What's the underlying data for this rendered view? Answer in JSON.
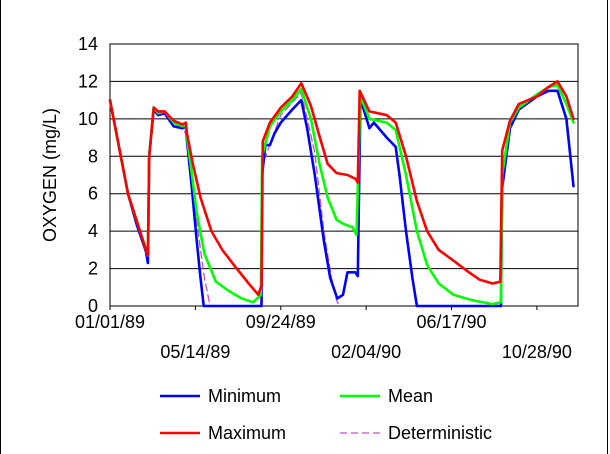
{
  "chart_data": {
    "type": "line",
    "title": "",
    "xlabel": "",
    "ylabel": "OXYGEN (mg/L)",
    "ylim": [
      0,
      14
    ],
    "yticks": [
      0,
      2,
      4,
      6,
      8,
      10,
      12,
      14
    ],
    "xlim": [
      "01/01/89",
      "12/31/90"
    ],
    "xtick_labels": [
      "01/01/89",
      "05/14/89",
      "09/24/89",
      "02/04/90",
      "06/17/90",
      "10/28/90"
    ],
    "grid": "horizontal",
    "legend_placement": "bottom",
    "series": [
      {
        "name": "Minimum",
        "color": "#0000ff",
        "points": [
          [
            "01/01/89",
            11.0
          ],
          [
            "01/15/89",
            8.5
          ],
          [
            "01/29/89",
            6.0
          ],
          [
            "02/12/89",
            4.3
          ],
          [
            "02/26/89",
            2.9
          ],
          [
            "03/01/89",
            2.3
          ],
          [
            "03/03/89",
            8.0
          ],
          [
            "03/10/89",
            10.5
          ],
          [
            "03/17/89",
            10.2
          ],
          [
            "03/27/89",
            10.3
          ],
          [
            "04/10/89",
            9.6
          ],
          [
            "04/24/89",
            9.5
          ],
          [
            "04/29/89",
            9.6
          ],
          [
            "05/01/89",
            8.8
          ],
          [
            "05/08/89",
            6.5
          ],
          [
            "05/16/89",
            3.5
          ],
          [
            "05/22/89",
            1.5
          ],
          [
            "05/27/89",
            0.0
          ],
          [
            "08/25/89",
            0.0
          ],
          [
            "08/26/89",
            7.0
          ],
          [
            "08/31/89",
            8.6
          ],
          [
            "09/07/89",
            8.6
          ],
          [
            "09/14/89",
            9.2
          ],
          [
            "09/24/89",
            9.8
          ],
          [
            "10/12/89",
            10.5
          ],
          [
            "10/26/89",
            11.0
          ],
          [
            "11/04/89",
            9.5
          ],
          [
            "11/16/89",
            7.0
          ],
          [
            "11/30/89",
            3.5
          ],
          [
            "12/10/89",
            1.5
          ],
          [
            "12/21/89",
            0.4
          ],
          [
            "12/30/89",
            0.6
          ],
          [
            "01/06/90",
            1.8
          ],
          [
            "01/18/90",
            1.8
          ],
          [
            "01/22/90",
            1.6
          ],
          [
            "01/26/90",
            11.0
          ],
          [
            "02/02/90",
            10.3
          ],
          [
            "02/09/90",
            9.5
          ],
          [
            "02/16/90",
            9.8
          ],
          [
            "03/08/90",
            9.0
          ],
          [
            "03/22/90",
            8.5
          ],
          [
            "03/28/90",
            7.0
          ],
          [
            "04/07/90",
            4.0
          ],
          [
            "04/17/90",
            1.5
          ],
          [
            "04/24/90",
            0.0
          ],
          [
            "09/02/90",
            0.0
          ],
          [
            "09/04/90",
            6.3
          ],
          [
            "09/16/90",
            9.5
          ],
          [
            "09/30/90",
            10.5
          ],
          [
            "10/28/90",
            11.2
          ],
          [
            "11/15/90",
            11.5
          ],
          [
            "11/29/90",
            11.5
          ],
          [
            "12/13/90",
            10.0
          ],
          [
            "12/24/90",
            6.4
          ]
        ]
      },
      {
        "name": "Mean",
        "color": "#00ff00",
        "points": [
          [
            "01/01/89",
            11.0
          ],
          [
            "01/15/89",
            8.5
          ],
          [
            "01/29/89",
            6.0
          ],
          [
            "02/12/89",
            4.5
          ],
          [
            "02/26/89",
            3.0
          ],
          [
            "03/01/89",
            2.7
          ],
          [
            "03/03/89",
            8.0
          ],
          [
            "03/10/89",
            10.6
          ],
          [
            "03/17/89",
            10.3
          ],
          [
            "03/27/89",
            10.4
          ],
          [
            "04/10/89",
            9.8
          ],
          [
            "04/24/89",
            9.6
          ],
          [
            "04/29/89",
            9.7
          ],
          [
            "05/01/89",
            9.0
          ],
          [
            "05/08/89",
            7.2
          ],
          [
            "05/16/89",
            5.0
          ],
          [
            "05/28/89",
            2.8
          ],
          [
            "06/15/89",
            1.3
          ],
          [
            "07/05/89",
            0.8
          ],
          [
            "07/25/89",
            0.4
          ],
          [
            "08/12/89",
            0.2
          ],
          [
            "08/24/89",
            0.6
          ],
          [
            "08/26/89",
            8.0
          ],
          [
            "09/07/89",
            9.6
          ],
          [
            "09/24/89",
            10.4
          ],
          [
            "10/12/89",
            11.0
          ],
          [
            "10/26/89",
            11.6
          ],
          [
            "11/10/89",
            10.0
          ],
          [
            "11/24/89",
            7.5
          ],
          [
            "12/06/89",
            5.8
          ],
          [
            "12/20/89",
            4.6
          ],
          [
            "12/30/89",
            4.4
          ],
          [
            "01/06/90",
            4.3
          ],
          [
            "01/14/90",
            4.2
          ],
          [
            "01/20/90",
            3.8
          ],
          [
            "01/26/90",
            11.2
          ],
          [
            "02/09/90",
            10.0
          ],
          [
            "03/08/90",
            9.8
          ],
          [
            "03/22/90",
            9.4
          ],
          [
            "04/07/90",
            7.0
          ],
          [
            "04/24/90",
            4.0
          ],
          [
            "05/10/90",
            2.2
          ],
          [
            "05/28/90",
            1.2
          ],
          [
            "06/20/90",
            0.6
          ],
          [
            "07/20/90",
            0.3
          ],
          [
            "08/20/90",
            0.1
          ],
          [
            "09/02/90",
            0.2
          ],
          [
            "09/04/90",
            7.0
          ],
          [
            "09/16/90",
            9.8
          ],
          [
            "09/30/90",
            10.6
          ],
          [
            "10/28/90",
            11.3
          ],
          [
            "11/15/90",
            11.7
          ],
          [
            "11/29/90",
            11.8
          ],
          [
            "12/13/90",
            10.8
          ],
          [
            "12/24/90",
            9.8
          ]
        ]
      },
      {
        "name": "Maximum",
        "color": "#ff0000",
        "points": [
          [
            "01/01/89",
            11.0
          ],
          [
            "01/15/89",
            8.5
          ],
          [
            "01/29/89",
            6.0
          ],
          [
            "02/12/89",
            4.5
          ],
          [
            "02/26/89",
            3.0
          ],
          [
            "03/01/89",
            2.7
          ],
          [
            "03/03/89",
            8.0
          ],
          [
            "03/10/89",
            10.6
          ],
          [
            "03/17/89",
            10.4
          ],
          [
            "03/27/89",
            10.4
          ],
          [
            "04/10/89",
            9.9
          ],
          [
            "04/24/89",
            9.7
          ],
          [
            "04/29/89",
            9.8
          ],
          [
            "05/01/89",
            9.2
          ],
          [
            "05/10/89",
            7.6
          ],
          [
            "05/22/89",
            5.8
          ],
          [
            "06/08/89",
            4.0
          ],
          [
            "06/25/89",
            3.0
          ],
          [
            "07/15/89",
            2.1
          ],
          [
            "08/05/89",
            1.2
          ],
          [
            "08/20/89",
            0.6
          ],
          [
            "08/25/89",
            1.1
          ],
          [
            "08/27/89",
            8.8
          ],
          [
            "09/07/89",
            9.8
          ],
          [
            "09/24/89",
            10.6
          ],
          [
            "10/12/89",
            11.2
          ],
          [
            "10/26/89",
            11.9
          ],
          [
            "11/10/89",
            10.7
          ],
          [
            "11/24/89",
            9.0
          ],
          [
            "12/06/89",
            7.6
          ],
          [
            "12/20/89",
            7.1
          ],
          [
            "01/06/90",
            7.0
          ],
          [
            "01/18/90",
            6.8
          ],
          [
            "01/22/90",
            6.6
          ],
          [
            "01/25/90",
            11.5
          ],
          [
            "02/09/90",
            10.4
          ],
          [
            "03/08/90",
            10.2
          ],
          [
            "03/22/90",
            9.8
          ],
          [
            "04/07/90",
            8.0
          ],
          [
            "04/24/90",
            5.6
          ],
          [
            "05/10/90",
            4.0
          ],
          [
            "05/28/90",
            3.0
          ],
          [
            "06/17/90",
            2.5
          ],
          [
            "07/10/90",
            1.9
          ],
          [
            "07/31/90",
            1.4
          ],
          [
            "08/20/90",
            1.2
          ],
          [
            "09/01/90",
            1.3
          ],
          [
            "09/04/90",
            8.3
          ],
          [
            "09/16/90",
            9.9
          ],
          [
            "09/30/90",
            10.8
          ],
          [
            "10/28/90",
            11.2
          ],
          [
            "11/15/90",
            11.7
          ],
          [
            "11/29/90",
            12.0
          ],
          [
            "12/13/90",
            11.2
          ],
          [
            "12/24/90",
            10.0
          ]
        ]
      },
      {
        "name": "Deterministic",
        "color": "#c050c0",
        "dashed": true,
        "points": [
          [
            "01/01/89",
            11.0
          ],
          [
            "01/29/89",
            6.0
          ],
          [
            "03/01/89",
            2.6
          ],
          [
            "03/03/89",
            8.0
          ],
          [
            "03/10/89",
            10.6
          ],
          [
            "04/24/89",
            9.6
          ],
          [
            "05/01/89",
            9.0
          ],
          [
            "05/16/89",
            4.5
          ],
          [
            "05/28/89",
            1.5
          ],
          [
            "06/06/89",
            0.0
          ],
          [
            "08/25/89",
            0.0
          ],
          [
            "08/26/89",
            7.5
          ],
          [
            "09/24/89",
            10.2
          ],
          [
            "10/26/89",
            11.4
          ],
          [
            "11/16/89",
            8.2
          ],
          [
            "11/30/89",
            4.0
          ],
          [
            "12/12/89",
            1.5
          ],
          [
            "12/20/89",
            0.3
          ],
          [
            "12/24/89",
            0.0
          ]
        ]
      }
    ]
  }
}
